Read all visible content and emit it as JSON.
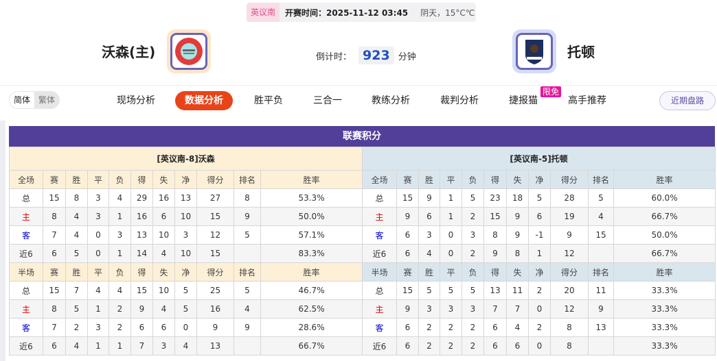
{
  "header": {
    "league": "英议南",
    "kickoff": "开赛时间：2025-11-12 03:45",
    "weather": "阴天，15°C℃",
    "countdown_label": "倒计时：",
    "countdown_value": "923",
    "countdown_unit": "分钟"
  },
  "home": {
    "name": "沃森(主)",
    "logo_text": "WORTHING FOOTBALL CLUB"
  },
  "away": {
    "name": "托顿",
    "logo_text": "AFC TOTTON"
  },
  "nav": {
    "lang": [
      "简体",
      "繁体"
    ],
    "items": [
      "现场分析",
      "数据分析",
      "胜平负",
      "三合一",
      "教练分析",
      "裁判分析",
      "捷报猫",
      "高手推荐"
    ],
    "active": "数据分析",
    "badge": "限免",
    "recent": "近期盘路"
  },
  "standings": {
    "title": "联赛积分",
    "colors": {
      "title_bar": "#523f9a",
      "home_header": "#fdf0d6",
      "away_header": "#dae6ee",
      "active_tab": "#e8441a"
    },
    "columns_full": [
      "全场",
      "赛",
      "胜",
      "平",
      "负",
      "得",
      "失",
      "净",
      "得分",
      "排名",
      "胜率"
    ],
    "columns_half": [
      "半场",
      "赛",
      "胜",
      "平",
      "负",
      "得",
      "失",
      "净",
      "得分",
      "排名",
      "胜率"
    ],
    "home": {
      "title": "[英议南-8]沃森",
      "full": [
        [
          "总",
          "15",
          "8",
          "3",
          "4",
          "29",
          "16",
          "13",
          "27",
          "8",
          "53.3%"
        ],
        [
          "主",
          "8",
          "4",
          "3",
          "1",
          "16",
          "6",
          "10",
          "15",
          "9",
          "50.0%"
        ],
        [
          "客",
          "7",
          "4",
          "0",
          "3",
          "13",
          "10",
          "3",
          "12",
          "5",
          "57.1%"
        ],
        [
          "近6",
          "6",
          "5",
          "0",
          "1",
          "14",
          "4",
          "10",
          "15",
          "",
          "83.3%"
        ]
      ],
      "half": [
        [
          "总",
          "15",
          "7",
          "4",
          "4",
          "15",
          "10",
          "5",
          "25",
          "5",
          "46.7%"
        ],
        [
          "主",
          "8",
          "5",
          "1",
          "2",
          "9",
          "4",
          "5",
          "16",
          "4",
          "62.5%"
        ],
        [
          "客",
          "7",
          "2",
          "3",
          "2",
          "6",
          "6",
          "0",
          "9",
          "9",
          "28.6%"
        ],
        [
          "近6",
          "6",
          "4",
          "1",
          "1",
          "7",
          "3",
          "4",
          "13",
          "",
          "66.7%"
        ]
      ]
    },
    "away": {
      "title": "[英议南-5]托顿",
      "full": [
        [
          "总",
          "15",
          "9",
          "1",
          "5",
          "23",
          "18",
          "5",
          "28",
          "5",
          "60.0%"
        ],
        [
          "主",
          "9",
          "6",
          "1",
          "2",
          "15",
          "9",
          "6",
          "19",
          "4",
          "66.7%"
        ],
        [
          "客",
          "6",
          "3",
          "0",
          "3",
          "8",
          "9",
          "-1",
          "9",
          "15",
          "50.0%"
        ],
        [
          "近6",
          "6",
          "4",
          "0",
          "2",
          "9",
          "8",
          "1",
          "12",
          "",
          "66.7%"
        ]
      ],
      "half": [
        [
          "总",
          "15",
          "5",
          "5",
          "5",
          "13",
          "11",
          "2",
          "20",
          "11",
          "33.3%"
        ],
        [
          "主",
          "9",
          "3",
          "3",
          "3",
          "7",
          "7",
          "0",
          "12",
          "9",
          "33.3%"
        ],
        [
          "客",
          "6",
          "2",
          "2",
          "2",
          "6",
          "4",
          "2",
          "8",
          "13",
          "33.3%"
        ],
        [
          "近6",
          "6",
          "2",
          "2",
          "2",
          "6",
          "6",
          "0",
          "8",
          "",
          "33.3%"
        ]
      ]
    }
  }
}
